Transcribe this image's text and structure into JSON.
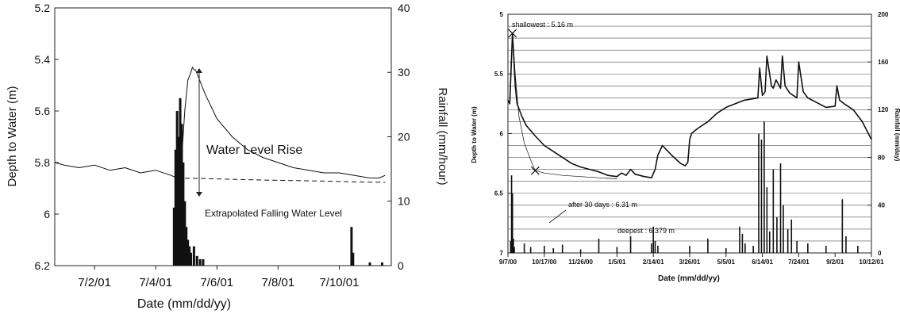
{
  "chart_data": [
    {
      "type": "line",
      "xlabel": "Date (mm/dd/yy)",
      "ylabel_left": "Depth to Water (m)",
      "ylabel_right": "Rainfall (mm/hour)",
      "x_ticks": [
        "7/2/01",
        "7/4/01",
        "7/6/01",
        "7/8/01",
        "7/10/01"
      ],
      "x_tick_days": [
        2,
        4,
        6,
        8,
        10
      ],
      "xlim_days": [
        0.7,
        11.7
      ],
      "y_left_ticks": [
        "5.2",
        "5.4",
        "5.6",
        "5.8",
        "6",
        "6.2"
      ],
      "ylim_left": [
        5.2,
        6.2
      ],
      "y_left_inverted": true,
      "y_right_ticks": [
        "0",
        "10",
        "20",
        "30",
        "40"
      ],
      "ylim_right": [
        0,
        40
      ],
      "grid": false,
      "annotations": [
        "Water Level Rise",
        "Extrapolated Falling Water Level"
      ],
      "series": [
        {
          "axis": "left",
          "style": "line",
          "x": [
            0.7,
            1.0,
            1.5,
            2.0,
            2.5,
            3.0,
            3.5,
            4.0,
            4.5,
            4.7,
            4.85,
            4.95,
            5.05,
            5.15,
            5.2,
            5.25,
            5.3,
            5.4,
            5.6,
            5.8,
            6.0,
            6.5,
            7.0,
            7.5,
            8.0,
            8.5,
            9.0,
            9.5,
            10.0,
            10.5,
            11.0,
            11.3,
            11.5
          ],
          "y": [
            5.8,
            5.81,
            5.82,
            5.81,
            5.83,
            5.82,
            5.84,
            5.83,
            5.85,
            5.86,
            5.78,
            5.6,
            5.48,
            5.45,
            5.43,
            5.44,
            5.44,
            5.47,
            5.53,
            5.58,
            5.63,
            5.7,
            5.75,
            5.78,
            5.8,
            5.82,
            5.83,
            5.84,
            5.84,
            5.85,
            5.86,
            5.86,
            5.85
          ]
        },
        {
          "axis": "left",
          "style": "dashed",
          "x": [
            4.7,
            5.5,
            6.5,
            7.5,
            8.5,
            9.5,
            10.5,
            11.5
          ],
          "y": [
            5.86,
            5.862,
            5.865,
            5.868,
            5.87,
            5.872,
            5.875,
            5.877
          ]
        },
        {
          "axis": "right",
          "style": "bar",
          "x": [
            4.6,
            4.65,
            4.7,
            4.75,
            4.8,
            4.85,
            4.9,
            4.95,
            5.0,
            5.05,
            5.1,
            5.15,
            5.25,
            5.35,
            5.45,
            5.55,
            10.4,
            10.45,
            11.0,
            11.4
          ],
          "y": [
            9,
            18,
            24,
            20,
            26,
            22,
            16,
            10,
            6,
            4,
            3,
            2,
            3,
            1.5,
            1,
            1,
            6,
            2,
            0.5,
            0.5
          ]
        }
      ]
    },
    {
      "type": "line",
      "xlabel": "Date (mm/dd/yy)",
      "ylabel_left": "Depth to Water (m)",
      "ylabel_right": "Rainfall (mm/day)",
      "x_ticks": [
        "9/7/00",
        "10/17/00",
        "11/26/00",
        "1/5/01",
        "2/14/01",
        "3/26/01",
        "5/5/01",
        "6/14/01",
        "7/24/01",
        "9/2/01",
        "10/12/01"
      ],
      "x_tick_days": [
        0,
        40,
        80,
        120,
        160,
        200,
        240,
        280,
        320,
        360,
        400
      ],
      "xlim_days": [
        0,
        400
      ],
      "y_left_ticks": [
        "5",
        "5.5",
        "6",
        "6.5",
        "7"
      ],
      "ylim_left": [
        5,
        7
      ],
      "y_left_inverted": true,
      "y_right_ticks": [
        "0",
        "40",
        "80",
        "120",
        "160",
        "200"
      ],
      "ylim_right": [
        0,
        200
      ],
      "grid": true,
      "annotations": [
        "shallowest : 5.16 m",
        "after 30 days : 6.31 m",
        "deepest : 6.379 m"
      ],
      "series": [
        {
          "axis": "left",
          "style": "line",
          "x": [
            0,
            2,
            4,
            5,
            6,
            8,
            10,
            15,
            20,
            30,
            40,
            50,
            60,
            70,
            80,
            90,
            100,
            110,
            120,
            125,
            130,
            135,
            140,
            150,
            158,
            162,
            165,
            170,
            180,
            190,
            195,
            198,
            200,
            202,
            205,
            210,
            220,
            230,
            240,
            250,
            260,
            275,
            277,
            280,
            283,
            285,
            290,
            292,
            295,
            300,
            302,
            305,
            310,
            318,
            320,
            325,
            330,
            340,
            350,
            360,
            362,
            365,
            370,
            380,
            390,
            400
          ],
          "y": [
            5.72,
            5.75,
            5.35,
            5.16,
            5.3,
            5.6,
            5.75,
            5.85,
            5.93,
            6.02,
            6.1,
            6.15,
            6.2,
            6.25,
            6.28,
            6.3,
            6.32,
            6.35,
            6.36,
            6.33,
            6.35,
            6.3,
            6.34,
            6.36,
            6.37,
            6.3,
            6.18,
            6.1,
            6.18,
            6.25,
            6.27,
            6.24,
            6.05,
            6.0,
            5.98,
            5.95,
            5.9,
            5.83,
            5.78,
            5.75,
            5.72,
            5.7,
            5.45,
            5.68,
            5.65,
            5.35,
            5.6,
            5.62,
            5.55,
            5.62,
            5.35,
            5.6,
            5.66,
            5.7,
            5.4,
            5.65,
            5.7,
            5.74,
            5.78,
            5.77,
            5.6,
            5.72,
            5.75,
            5.8,
            5.9,
            6.05
          ]
        },
        {
          "axis": "left",
          "style": "thin",
          "x": [
            5,
            8,
            12,
            18,
            25,
            30,
            40,
            60,
            80,
            100,
            120
          ],
          "y": [
            5.16,
            5.5,
            5.85,
            6.08,
            6.22,
            6.31,
            6.33,
            6.35,
            6.36,
            6.37,
            6.379
          ]
        },
        {
          "axis": "right",
          "style": "bar",
          "x": [
            3,
            4,
            5,
            6,
            7,
            18,
            25,
            40,
            50,
            60,
            80,
            100,
            120,
            135,
            158,
            160,
            162,
            165,
            200,
            220,
            240,
            255,
            258,
            261,
            270,
            276,
            279,
            282,
            285,
            288,
            292,
            296,
            300,
            303,
            308,
            312,
            318,
            330,
            350,
            368,
            372,
            385
          ],
          "y": [
            10,
            65,
            50,
            12,
            5,
            8,
            5,
            6,
            4,
            7,
            3,
            12,
            5,
            14,
            8,
            22,
            10,
            6,
            6,
            12,
            4,
            22,
            16,
            8,
            6,
            100,
            95,
            110,
            55,
            18,
            70,
            30,
            75,
            40,
            20,
            28,
            10,
            8,
            6,
            45,
            14,
            6
          ]
        }
      ],
      "markers": [
        {
          "x": 5,
          "y": 5.16,
          "symbol": "x"
        },
        {
          "x": 30,
          "y": 6.31,
          "symbol": "x"
        }
      ]
    }
  ]
}
